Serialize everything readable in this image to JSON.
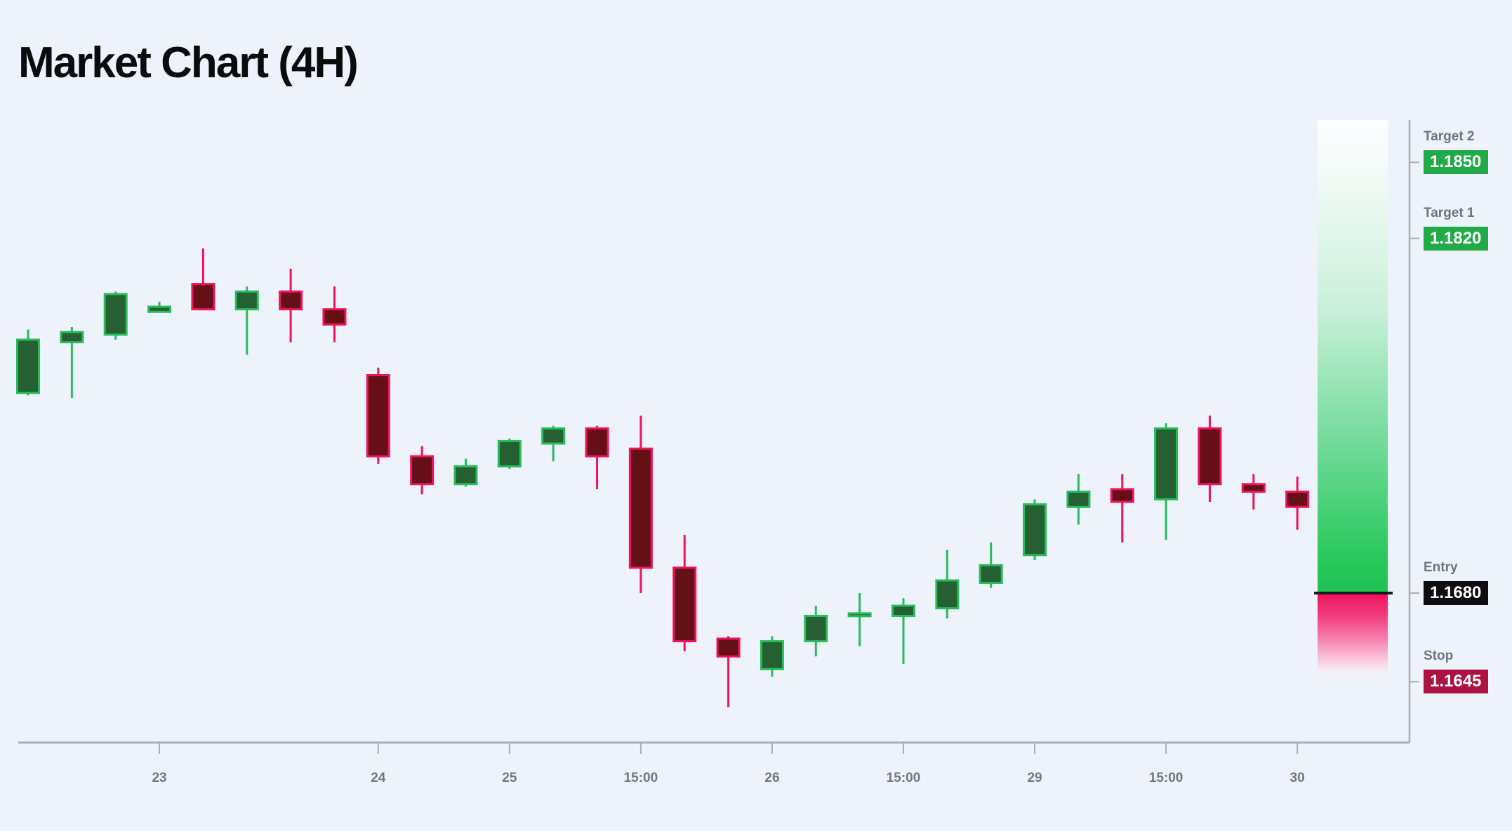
{
  "title": "Market Chart (4H)",
  "colors": {
    "background": "#eef2fb",
    "axis": "#a8adb9",
    "tick_text": "#6f7789",
    "label_text": "#6b7385",
    "up_fill": "#265f31",
    "up_border": "#26bd5b",
    "down_fill": "#641016",
    "down_border": "#f0135c",
    "entry_line": "#191a21",
    "badge_green": "#21ab47",
    "badge_dark": "#0d0d12",
    "badge_red": "#ae1243",
    "badge_text": "#ffffff",
    "band_green_start": "#ffffff",
    "band_green_end": "#1fc153",
    "band_pink_start": "#f0125e",
    "band_pink_end": "#ffffff"
  },
  "levels": [
    {
      "id": "target2",
      "label": "Target 2",
      "value": "1.1850",
      "price": 1.185,
      "badge": "green"
    },
    {
      "id": "target1",
      "label": "Target 1",
      "value": "1.1820",
      "price": 1.182,
      "badge": "green"
    },
    {
      "id": "entry",
      "label": "Entry",
      "value": "1.1680",
      "price": 1.168,
      "badge": "dark"
    },
    {
      "id": "stop",
      "label": "Stop",
      "value": "1.1645",
      "price": 1.1645,
      "badge": "red"
    }
  ],
  "chart_data": {
    "type": "candlestick",
    "title": "Market Chart (4H)",
    "timeframe": "4H",
    "xlabel": "",
    "ylabel": "",
    "grid": false,
    "legend": "none",
    "visible_price_range": [
      1.1634,
      1.1816
    ],
    "key_levels": {
      "target2": 1.185,
      "target1": 1.182,
      "entry": 1.168,
      "stop": 1.1645
    },
    "x_tick_labels": [
      {
        "index": 3,
        "label": "23"
      },
      {
        "index": 8,
        "label": "24"
      },
      {
        "index": 11,
        "label": "25"
      },
      {
        "index": 14,
        "label": "15:00"
      },
      {
        "index": 17,
        "label": "26"
      },
      {
        "index": 20,
        "label": "15:00"
      },
      {
        "index": 23,
        "label": "29"
      },
      {
        "index": 26,
        "label": "15:00"
      },
      {
        "index": 29,
        "label": "30"
      }
    ],
    "candles": [
      {
        "o": 1.1759,
        "h": 1.1784,
        "l": 1.1758,
        "c": 1.178
      },
      {
        "o": 1.1779,
        "h": 1.1785,
        "l": 1.1757,
        "c": 1.1783
      },
      {
        "o": 1.1782,
        "h": 1.1799,
        "l": 1.178,
        "c": 1.1798
      },
      {
        "o": 1.1791,
        "h": 1.1795,
        "l": 1.1791,
        "c": 1.1793
      },
      {
        "o": 1.1802,
        "h": 1.1816,
        "l": 1.1792,
        "c": 1.1792
      },
      {
        "o": 1.1792,
        "h": 1.1801,
        "l": 1.1774,
        "c": 1.1799
      },
      {
        "o": 1.1799,
        "h": 1.1808,
        "l": 1.1779,
        "c": 1.1792
      },
      {
        "o": 1.1792,
        "h": 1.1801,
        "l": 1.1779,
        "c": 1.1786
      },
      {
        "o": 1.1766,
        "h": 1.1769,
        "l": 1.1731,
        "c": 1.1734
      },
      {
        "o": 1.1734,
        "h": 1.1738,
        "l": 1.1719,
        "c": 1.1723
      },
      {
        "o": 1.1723,
        "h": 1.1733,
        "l": 1.1722,
        "c": 1.173
      },
      {
        "o": 1.173,
        "h": 1.1741,
        "l": 1.1729,
        "c": 1.174
      },
      {
        "o": 1.1739,
        "h": 1.1746,
        "l": 1.1732,
        "c": 1.1745
      },
      {
        "o": 1.1745,
        "h": 1.1746,
        "l": 1.1721,
        "c": 1.1734
      },
      {
        "o": 1.1737,
        "h": 1.175,
        "l": 1.168,
        "c": 1.169
      },
      {
        "o": 1.169,
        "h": 1.1703,
        "l": 1.1657,
        "c": 1.1661
      },
      {
        "o": 1.1662,
        "h": 1.1663,
        "l": 1.1635,
        "c": 1.1655
      },
      {
        "o": 1.165,
        "h": 1.1663,
        "l": 1.1647,
        "c": 1.1661
      },
      {
        "o": 1.1661,
        "h": 1.1675,
        "l": 1.1655,
        "c": 1.1671
      },
      {
        "o": 1.1671,
        "h": 1.168,
        "l": 1.1659,
        "c": 1.1672
      },
      {
        "o": 1.1671,
        "h": 1.1678,
        "l": 1.1652,
        "c": 1.1675
      },
      {
        "o": 1.1674,
        "h": 1.1697,
        "l": 1.167,
        "c": 1.1685
      },
      {
        "o": 1.1684,
        "h": 1.17,
        "l": 1.1682,
        "c": 1.1691
      },
      {
        "o": 1.1695,
        "h": 1.1717,
        "l": 1.1693,
        "c": 1.1715
      },
      {
        "o": 1.1714,
        "h": 1.1727,
        "l": 1.1707,
        "c": 1.172
      },
      {
        "o": 1.1721,
        "h": 1.1727,
        "l": 1.17,
        "c": 1.1716
      },
      {
        "o": 1.1717,
        "h": 1.1747,
        "l": 1.1701,
        "c": 1.1745
      },
      {
        "o": 1.1745,
        "h": 1.175,
        "l": 1.1716,
        "c": 1.1723
      },
      {
        "o": 1.1723,
        "h": 1.1727,
        "l": 1.1713,
        "c": 1.172
      },
      {
        "o": 1.172,
        "h": 1.1726,
        "l": 1.1705,
        "c": 1.1714
      }
    ]
  }
}
